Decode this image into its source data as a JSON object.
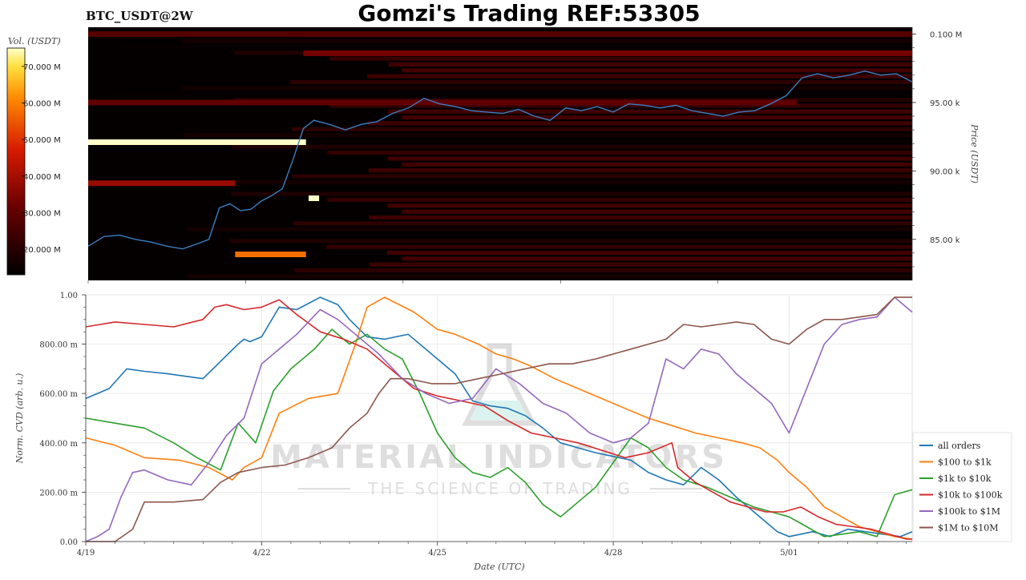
{
  "header": {
    "symbol": "BTC_USDT@2W",
    "title": "Gomzi's Trading REF:53305"
  },
  "watermark": {
    "line1": "MATERIAL INDICATORS",
    "line2": "THE SCIENCE OF TRADING"
  },
  "colors": {
    "heatmap_background": "#050000",
    "price_line": "#3a7fc1",
    "all_orders": "#1f77b4",
    "100_to_1k": "#ff7f0e",
    "1k_to_10k": "#2ca02c",
    "10k_to_100k": "#d62728",
    "100k_to_1M": "#9467bd",
    "1M_to_10M": "#8c564b"
  },
  "chart_data": [
    {
      "type": "heatmap",
      "colorbar": {
        "label": "Vol. (USDT)",
        "ticks": [
          "70.000 M",
          "60.000 M",
          "50.000 M",
          "40.000 M",
          "30.000 M",
          "20.000 M"
        ],
        "range": [
          13,
          75
        ]
      },
      "ylabel": "Price (USDT)",
      "y_ticks": [
        "0.100 M",
        "95.00 k",
        "90.00 k",
        "85.00 k"
      ],
      "ylim": [
        82000,
        100500
      ],
      "xlim": [
        0,
        15.7
      ],
      "x_ticks_days": [
        0,
        3,
        6,
        9,
        12
      ],
      "price_series": {
        "x": [
          0,
          0.3,
          0.6,
          0.9,
          1.2,
          1.5,
          1.8,
          2.1,
          2.3,
          2.5,
          2.7,
          2.9,
          3.1,
          3.3,
          3.5,
          3.7,
          3.9,
          4.1,
          4.3,
          4.6,
          4.9,
          5.2,
          5.5,
          5.8,
          6.1,
          6.4,
          6.7,
          7.0,
          7.3,
          7.6,
          7.9,
          8.2,
          8.5,
          8.8,
          9.1,
          9.4,
          9.7,
          10.0,
          10.3,
          10.6,
          10.9,
          11.2,
          11.5,
          11.8,
          12.1,
          12.4,
          12.7,
          13.0,
          13.3,
          13.6,
          13.9,
          14.2,
          14.5,
          14.8,
          15.1,
          15.4,
          15.7
        ],
        "y": [
          84500,
          85200,
          85300,
          85000,
          84800,
          84500,
          84300,
          84700,
          85000,
          87300,
          87600,
          87100,
          87200,
          87800,
          88200,
          88700,
          90800,
          93100,
          93700,
          93400,
          93000,
          93400,
          93600,
          94200,
          94600,
          95300,
          94900,
          94700,
          94400,
          94300,
          94200,
          94500,
          94000,
          93700,
          94600,
          94400,
          94700,
          94300,
          94900,
          94800,
          94600,
          94800,
          94400,
          94200,
          94000,
          94300,
          94400,
          94900,
          95500,
          96800,
          97100,
          96800,
          97000,
          97300,
          97000,
          97100,
          96500
        ]
      },
      "volume_bands": [
        {
          "price": 100000,
          "x_start": 0,
          "x_end": 15.7,
          "volume": 28
        },
        {
          "price": 98600,
          "x_start": 4.1,
          "x_end": 15.7,
          "volume": 33
        },
        {
          "price": 95000,
          "x_start": 0,
          "x_end": 13.5,
          "volume": 30
        },
        {
          "price": 92100,
          "x_start": 0,
          "x_end": 4.15,
          "volume": 75
        },
        {
          "price": 89100,
          "x_start": 0,
          "x_end": 2.8,
          "volume": 38
        },
        {
          "price": 83900,
          "x_start": 2.8,
          "x_end": 4.15,
          "volume": 58
        },
        {
          "price": 88000,
          "x_start": 4.2,
          "x_end": 4.4,
          "volume": 75
        }
      ]
    },
    {
      "type": "line",
      "xlabel": "Date (UTC)",
      "ylabel": "Norm. CVD (arb. u.)",
      "x_tick_labels": [
        "4/19",
        "4/22",
        "4/25",
        "4/28",
        "5/01"
      ],
      "y_tick_labels": [
        "0.00",
        "200.00 m",
        "400.00 m",
        "600.00 m",
        "800.00 m",
        "1.00"
      ],
      "ylim": [
        0,
        1
      ],
      "xlim": [
        0,
        14.1
      ],
      "grid": true,
      "legend_position": "bottom-right",
      "series": [
        {
          "name": "all orders",
          "color_key": "all_orders",
          "x": [
            0,
            0.4,
            0.7,
            1.0,
            1.4,
            2.0,
            2.6,
            2.7,
            2.8,
            3.0,
            3.3,
            3.6,
            4.0,
            4.3,
            4.5,
            4.8,
            5.1,
            5.5,
            5.9,
            6.3,
            6.6,
            6.9,
            7.2,
            7.5,
            7.8,
            8.1,
            8.4,
            8.7,
            8.9,
            9.1,
            9.3,
            9.6,
            9.9,
            10.2,
            10.5,
            10.8,
            11.1,
            11.4,
            11.6,
            11.8,
            12.0,
            12.2,
            12.4,
            12.7,
            13.0,
            13.3,
            13.6,
            13.9,
            14.1
          ],
          "y": [
            0.58,
            0.62,
            0.7,
            0.69,
            0.68,
            0.66,
            0.8,
            0.82,
            0.81,
            0.83,
            0.95,
            0.94,
            0.99,
            0.96,
            0.9,
            0.83,
            0.82,
            0.84,
            0.76,
            0.68,
            0.57,
            0.55,
            0.54,
            0.51,
            0.46,
            0.4,
            0.38,
            0.36,
            0.35,
            0.34,
            0.33,
            0.28,
            0.25,
            0.23,
            0.3,
            0.25,
            0.18,
            0.12,
            0.08,
            0.04,
            0.02,
            0.03,
            0.04,
            0.02,
            0.05,
            0.04,
            0.03,
            0.02,
            0.04
          ]
        },
        {
          "name": "$100 to $1k",
          "color_key": "100_to_1k",
          "x": [
            0,
            0.5,
            1.0,
            1.6,
            2.1,
            2.5,
            2.7,
            3.0,
            3.3,
            3.8,
            4.3,
            4.6,
            4.8,
            5.1,
            5.6,
            6.0,
            6.3,
            6.7,
            7.0,
            7.3,
            7.6,
            8.0,
            8.4,
            8.8,
            9.2,
            9.6,
            10.0,
            10.4,
            10.8,
            11.2,
            11.5,
            11.8,
            12.0,
            12.3,
            12.6,
            12.9,
            13.2,
            13.5,
            13.8,
            14.1
          ],
          "y": [
            0.42,
            0.39,
            0.34,
            0.33,
            0.3,
            0.25,
            0.3,
            0.34,
            0.52,
            0.58,
            0.6,
            0.8,
            0.95,
            0.99,
            0.93,
            0.86,
            0.84,
            0.8,
            0.76,
            0.74,
            0.71,
            0.66,
            0.62,
            0.58,
            0.54,
            0.5,
            0.47,
            0.44,
            0.42,
            0.4,
            0.38,
            0.33,
            0.28,
            0.22,
            0.14,
            0.1,
            0.06,
            0.04,
            0.02,
            0.01
          ]
        },
        {
          "name": "$1k to $10k",
          "color_key": "1k_to_10k",
          "x": [
            0,
            0.5,
            1.0,
            1.5,
            1.9,
            2.3,
            2.6,
            2.9,
            3.2,
            3.5,
            3.9,
            4.2,
            4.5,
            4.8,
            5.1,
            5.4,
            5.7,
            6.0,
            6.3,
            6.6,
            6.9,
            7.2,
            7.5,
            7.8,
            8.1,
            8.4,
            8.7,
            9.0,
            9.3,
            9.6,
            9.9,
            10.2,
            10.6,
            11.0,
            11.4,
            11.7,
            12.0,
            12.3,
            12.6,
            12.9,
            13.2,
            13.5,
            13.8,
            14.1
          ],
          "y": [
            0.5,
            0.48,
            0.46,
            0.4,
            0.34,
            0.29,
            0.48,
            0.4,
            0.61,
            0.7,
            0.78,
            0.86,
            0.8,
            0.84,
            0.78,
            0.74,
            0.6,
            0.44,
            0.34,
            0.28,
            0.26,
            0.3,
            0.24,
            0.15,
            0.1,
            0.16,
            0.22,
            0.32,
            0.42,
            0.38,
            0.3,
            0.25,
            0.22,
            0.18,
            0.14,
            0.12,
            0.1,
            0.06,
            0.02,
            0.03,
            0.04,
            0.02,
            0.19,
            0.21
          ]
        },
        {
          "name": "$10k to $100k",
          "color_key": "10k_to_100k",
          "x": [
            0,
            0.5,
            1.0,
            1.5,
            2.0,
            2.2,
            2.4,
            2.7,
            3.0,
            3.3,
            3.6,
            4.0,
            4.4,
            4.8,
            5.2,
            5.6,
            6.0,
            6.4,
            6.8,
            7.2,
            7.6,
            8.0,
            8.4,
            8.8,
            9.2,
            9.6,
            10.0,
            10.1,
            10.4,
            10.7,
            11.0,
            11.3,
            11.6,
            11.9,
            12.2,
            12.5,
            12.8,
            13.1,
            13.4,
            13.7,
            14.0,
            14.1
          ],
          "y": [
            0.87,
            0.89,
            0.88,
            0.87,
            0.9,
            0.95,
            0.96,
            0.94,
            0.95,
            0.98,
            0.92,
            0.85,
            0.82,
            0.78,
            0.7,
            0.62,
            0.59,
            0.57,
            0.55,
            0.49,
            0.44,
            0.42,
            0.4,
            0.37,
            0.34,
            0.36,
            0.4,
            0.3,
            0.24,
            0.2,
            0.16,
            0.14,
            0.12,
            0.12,
            0.14,
            0.1,
            0.07,
            0.06,
            0.05,
            0.03,
            0.01,
            0.01
          ]
        },
        {
          "name": "$100k to $1M",
          "color_key": "100k_to_1M",
          "x": [
            0,
            0.2,
            0.4,
            0.6,
            0.8,
            1.0,
            1.4,
            1.8,
            2.1,
            2.4,
            2.7,
            3.0,
            3.3,
            3.6,
            4.0,
            4.3,
            4.6,
            5.0,
            5.4,
            5.8,
            6.2,
            6.6,
            7.0,
            7.4,
            7.8,
            8.2,
            8.6,
            9.0,
            9.3,
            9.6,
            9.9,
            10.2,
            10.5,
            10.8,
            11.1,
            11.4,
            11.7,
            12.0,
            12.3,
            12.6,
            12.9,
            13.2,
            13.5,
            13.8,
            14.1
          ],
          "y": [
            0.0,
            0.02,
            0.05,
            0.18,
            0.28,
            0.29,
            0.25,
            0.23,
            0.32,
            0.43,
            0.5,
            0.72,
            0.78,
            0.84,
            0.94,
            0.9,
            0.84,
            0.76,
            0.66,
            0.6,
            0.56,
            0.58,
            0.7,
            0.64,
            0.56,
            0.52,
            0.44,
            0.4,
            0.42,
            0.48,
            0.74,
            0.7,
            0.78,
            0.76,
            0.68,
            0.62,
            0.56,
            0.44,
            0.62,
            0.8,
            0.88,
            0.9,
            0.91,
            0.99,
            0.93
          ]
        },
        {
          "name": "$1M to $10M",
          "color_key": "1M_to_10M",
          "x": [
            0,
            0.5,
            0.8,
            1.0,
            1.5,
            2.0,
            2.3,
            2.6,
            3.0,
            3.4,
            3.8,
            4.2,
            4.5,
            4.8,
            5.0,
            5.2,
            5.5,
            5.9,
            6.3,
            6.7,
            7.1,
            7.5,
            7.9,
            8.3,
            8.7,
            9.0,
            9.3,
            9.6,
            9.9,
            10.2,
            10.5,
            10.8,
            11.1,
            11.4,
            11.7,
            12.0,
            12.3,
            12.6,
            12.9,
            13.2,
            13.5,
            13.8,
            14.1
          ],
          "y": [
            0.0,
            0.0,
            0.05,
            0.16,
            0.16,
            0.17,
            0.24,
            0.28,
            0.3,
            0.31,
            0.34,
            0.38,
            0.46,
            0.52,
            0.6,
            0.66,
            0.66,
            0.64,
            0.64,
            0.66,
            0.68,
            0.7,
            0.72,
            0.72,
            0.74,
            0.76,
            0.78,
            0.8,
            0.82,
            0.88,
            0.87,
            0.88,
            0.89,
            0.88,
            0.82,
            0.8,
            0.86,
            0.9,
            0.9,
            0.91,
            0.92,
            0.99,
            0.99
          ]
        }
      ]
    }
  ]
}
